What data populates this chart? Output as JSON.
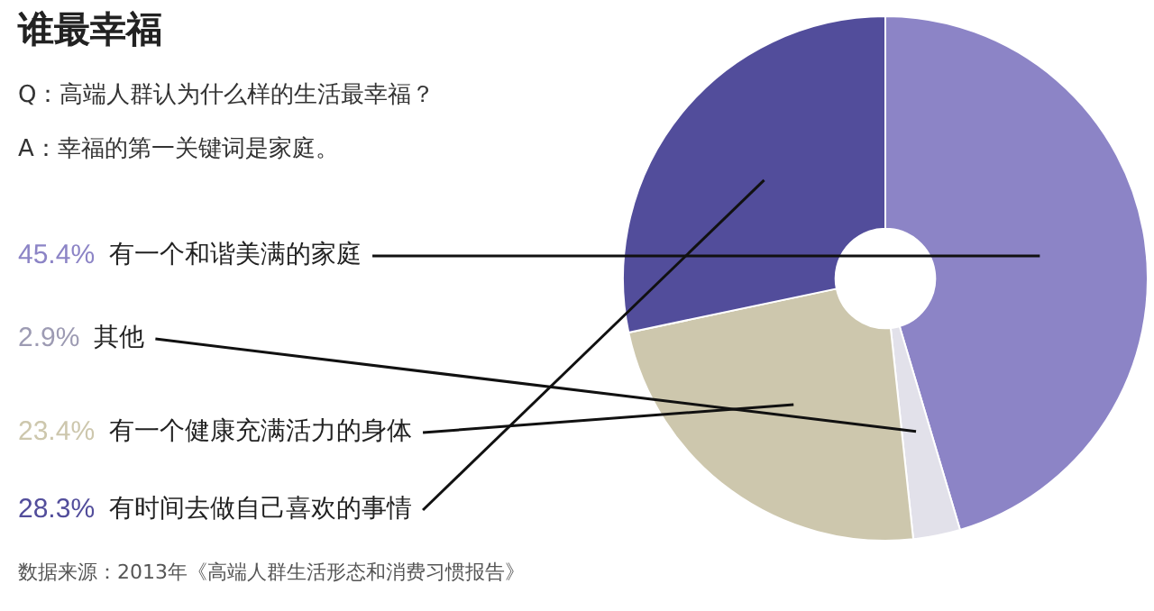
{
  "chart_data": {
    "type": "donut",
    "title": "谁最幸福",
    "annotations": [
      "Q：高端人群认为什么样的生活最幸福？",
      "A：幸福的第一关键词是家庭。",
      "数据来源：2013年《高端人群生活形态和消费习惯报告》"
    ],
    "categories": [
      "有一个和谐美满的家庭",
      "其他",
      "有一个健康充满活力的身体",
      "有时间去做自己喜欢的事情"
    ],
    "values": [
      45.4,
      2.9,
      23.4,
      28.3
    ],
    "colors": [
      "#8c84c6",
      "#e2e1ea",
      "#cdc7ad",
      "#524d9b"
    ],
    "value_labels": [
      "45.4%",
      "2.9%",
      "23.4%",
      "28.3%"
    ],
    "legend": false
  }
}
